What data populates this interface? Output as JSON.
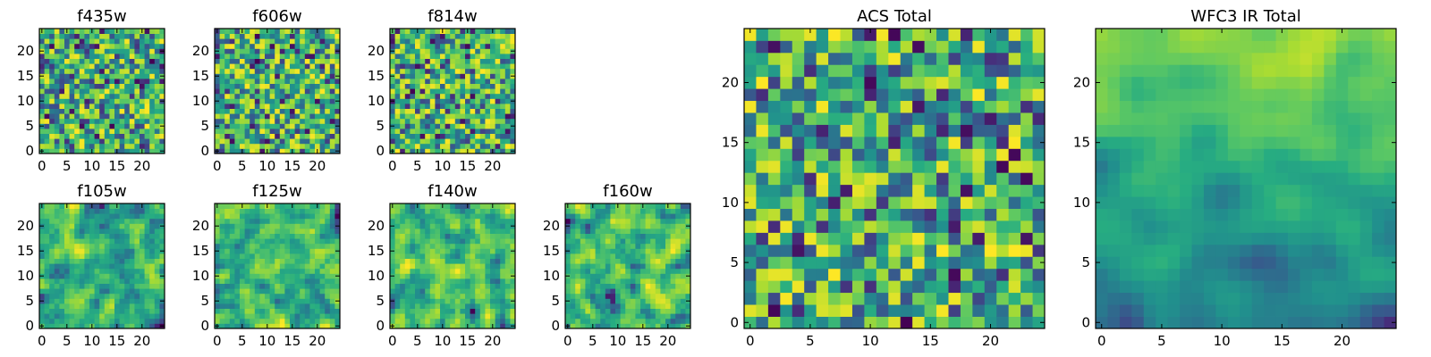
{
  "chart_data": [
    {
      "id": "f435w",
      "type": "heatmap",
      "title": "f435w",
      "grid_size": 25,
      "seed": 11,
      "smooth": 0,
      "bias": 0.6,
      "x_ticks": [
        0,
        5,
        10,
        15,
        20
      ],
      "y_ticks": [
        0,
        5,
        10,
        15,
        20
      ],
      "xlim": [
        -0.5,
        24.5
      ],
      "ylim": [
        -0.5,
        24.5
      ],
      "colormap": "viridis"
    },
    {
      "id": "f606w",
      "type": "heatmap",
      "title": "f606w",
      "grid_size": 25,
      "seed": 23,
      "smooth": 0,
      "bias": 0.6,
      "x_ticks": [
        0,
        5,
        10,
        15,
        20
      ],
      "y_ticks": [
        0,
        5,
        10,
        15,
        20
      ],
      "xlim": [
        -0.5,
        24.5
      ],
      "ylim": [
        -0.5,
        24.5
      ],
      "colormap": "viridis"
    },
    {
      "id": "f814w",
      "type": "heatmap",
      "title": "f814w",
      "grid_size": 25,
      "seed": 37,
      "smooth": 0,
      "bias": 0.62,
      "x_ticks": [
        0,
        5,
        10,
        15,
        20
      ],
      "y_ticks": [
        0,
        5,
        10,
        15,
        20
      ],
      "xlim": [
        -0.5,
        24.5
      ],
      "ylim": [
        -0.5,
        24.5
      ],
      "colormap": "viridis"
    },
    {
      "id": "f105w",
      "type": "heatmap",
      "title": "f105w",
      "grid_size": 25,
      "seed": 41,
      "smooth": 1,
      "bias": 0.62,
      "x_ticks": [
        0,
        5,
        10,
        15,
        20
      ],
      "y_ticks": [
        0,
        5,
        10,
        15,
        20
      ],
      "xlim": [
        -0.5,
        24.5
      ],
      "ylim": [
        -0.5,
        24.5
      ],
      "colormap": "viridis"
    },
    {
      "id": "f125w",
      "type": "heatmap",
      "title": "f125w",
      "grid_size": 25,
      "seed": 53,
      "smooth": 1,
      "bias": 0.6,
      "x_ticks": [
        0,
        5,
        10,
        15,
        20
      ],
      "y_ticks": [
        0,
        5,
        10,
        15,
        20
      ],
      "xlim": [
        -0.5,
        24.5
      ],
      "ylim": [
        -0.5,
        24.5
      ],
      "colormap": "viridis"
    },
    {
      "id": "f140w",
      "type": "heatmap",
      "title": "f140w",
      "grid_size": 25,
      "seed": 67,
      "smooth": 1,
      "bias": 0.6,
      "x_ticks": [
        0,
        5,
        10,
        15,
        20
      ],
      "y_ticks": [
        0,
        5,
        10,
        15,
        20
      ],
      "xlim": [
        -0.5,
        24.5
      ],
      "ylim": [
        -0.5,
        24.5
      ],
      "colormap": "viridis"
    },
    {
      "id": "f160w",
      "type": "heatmap",
      "title": "f160w",
      "grid_size": 25,
      "seed": 79,
      "smooth": 1,
      "bias": 0.52,
      "x_ticks": [
        0,
        5,
        10,
        15,
        20
      ],
      "y_ticks": [
        0,
        5,
        10,
        15,
        20
      ],
      "xlim": [
        -0.5,
        24.5
      ],
      "ylim": [
        -0.5,
        24.5
      ],
      "colormap": "viridis"
    },
    {
      "id": "acs_total",
      "type": "heatmap",
      "title": "ACS Total",
      "grid_size": 25,
      "seed": 97,
      "smooth": 0,
      "bias": 0.66,
      "x_ticks": [
        0,
        5,
        10,
        15,
        20
      ],
      "y_ticks": [
        0,
        5,
        10,
        15,
        20
      ],
      "xlim": [
        -0.5,
        24.5
      ],
      "ylim": [
        -0.5,
        24.5
      ],
      "colormap": "viridis"
    },
    {
      "id": "wfc3_ir_total",
      "type": "heatmap",
      "title": "WFC3 IR Total",
      "grid_size": 25,
      "seed": 131,
      "smooth": 2,
      "bias": 0.58,
      "gradient": true,
      "x_ticks": [
        0,
        5,
        10,
        15,
        20
      ],
      "y_ticks": [
        0,
        5,
        10,
        15,
        20
      ],
      "xlim": [
        -0.5,
        24.5
      ],
      "ylim": [
        -0.5,
        24.5
      ],
      "colormap": "viridis"
    }
  ]
}
